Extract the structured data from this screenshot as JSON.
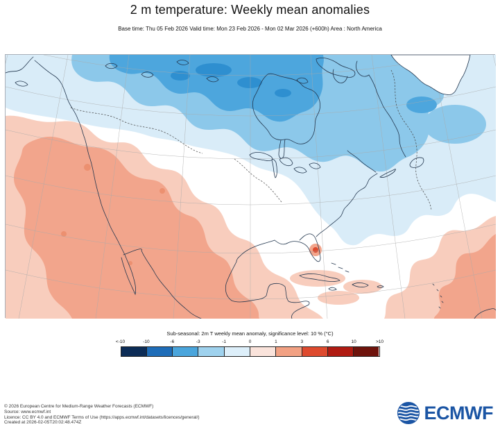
{
  "header": {
    "title": "2 m temperature: Weekly mean anomalies",
    "subtitle": "Base time: Thu 05 Feb 2026 Valid time: Mon 23 Feb 2026 - Mon 02 Mar 2026 (+600h) Area : North America"
  },
  "map": {
    "area": "North America",
    "region_colors": {
      "strong_cold": "#2e8fd0",
      "cold": "#4da6dd",
      "moderate_cold": "#8cc8ea",
      "weak_cold": "#d9ecf8",
      "neutral": "#ffffff",
      "weak_warm": "#f8cdbd",
      "warm": "#f2a58c",
      "deep_warm": "#ec9070",
      "strong_warm": "#dd4a2e"
    }
  },
  "legend": {
    "caption": "Sub-seasonal: 2m T weekly mean anomaly, significance level: 10 % (°C)",
    "unit": "°C",
    "ticks": [
      "<-10",
      "-10",
      "-6",
      "-3",
      "-1",
      "0",
      "1",
      "3",
      "6",
      "10",
      ">10"
    ],
    "colors": [
      "#0c2c56",
      "#1f6db8",
      "#4aa5dc",
      "#9fd2ee",
      "#ddeffa",
      "#fae3db",
      "#f2a183",
      "#de4a2e",
      "#b01b12",
      "#6e130c"
    ]
  },
  "footer": {
    "lines": [
      "© 2026 European Centre for Medium-Range Weather Forecasts (ECMWF)",
      "Source: www.ecmwf.int",
      "Licence: CC BY 4.0 and ECMWF Terms of Use (https://apps.ecmwf.int/datasets/licences/general/)",
      "Created at 2026-02-05T20:02:48.474Z"
    ]
  },
  "logo": {
    "text": "ECMWF",
    "color": "#1b55a4"
  }
}
